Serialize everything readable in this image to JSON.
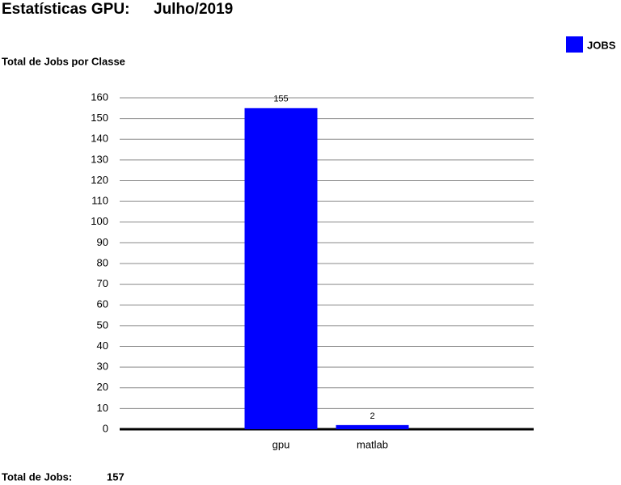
{
  "chart_data": {
    "type": "bar",
    "title": "Estatísticas GPU:",
    "subtitle": "Julho/2019",
    "y_label": "Total de Jobs por Classe",
    "categories": [
      "gpu",
      "matlab"
    ],
    "series": [
      {
        "name": "JOBS",
        "color": "#0000ff",
        "values": [
          155,
          2
        ]
      }
    ],
    "ylim": [
      0,
      160
    ],
    "yticks": [
      0,
      10,
      20,
      30,
      40,
      50,
      60,
      70,
      80,
      90,
      100,
      110,
      120,
      130,
      140,
      150,
      160
    ],
    "grid": true,
    "legend": "top-right"
  },
  "footer": {
    "label": "Total de Jobs:",
    "value": 157
  }
}
